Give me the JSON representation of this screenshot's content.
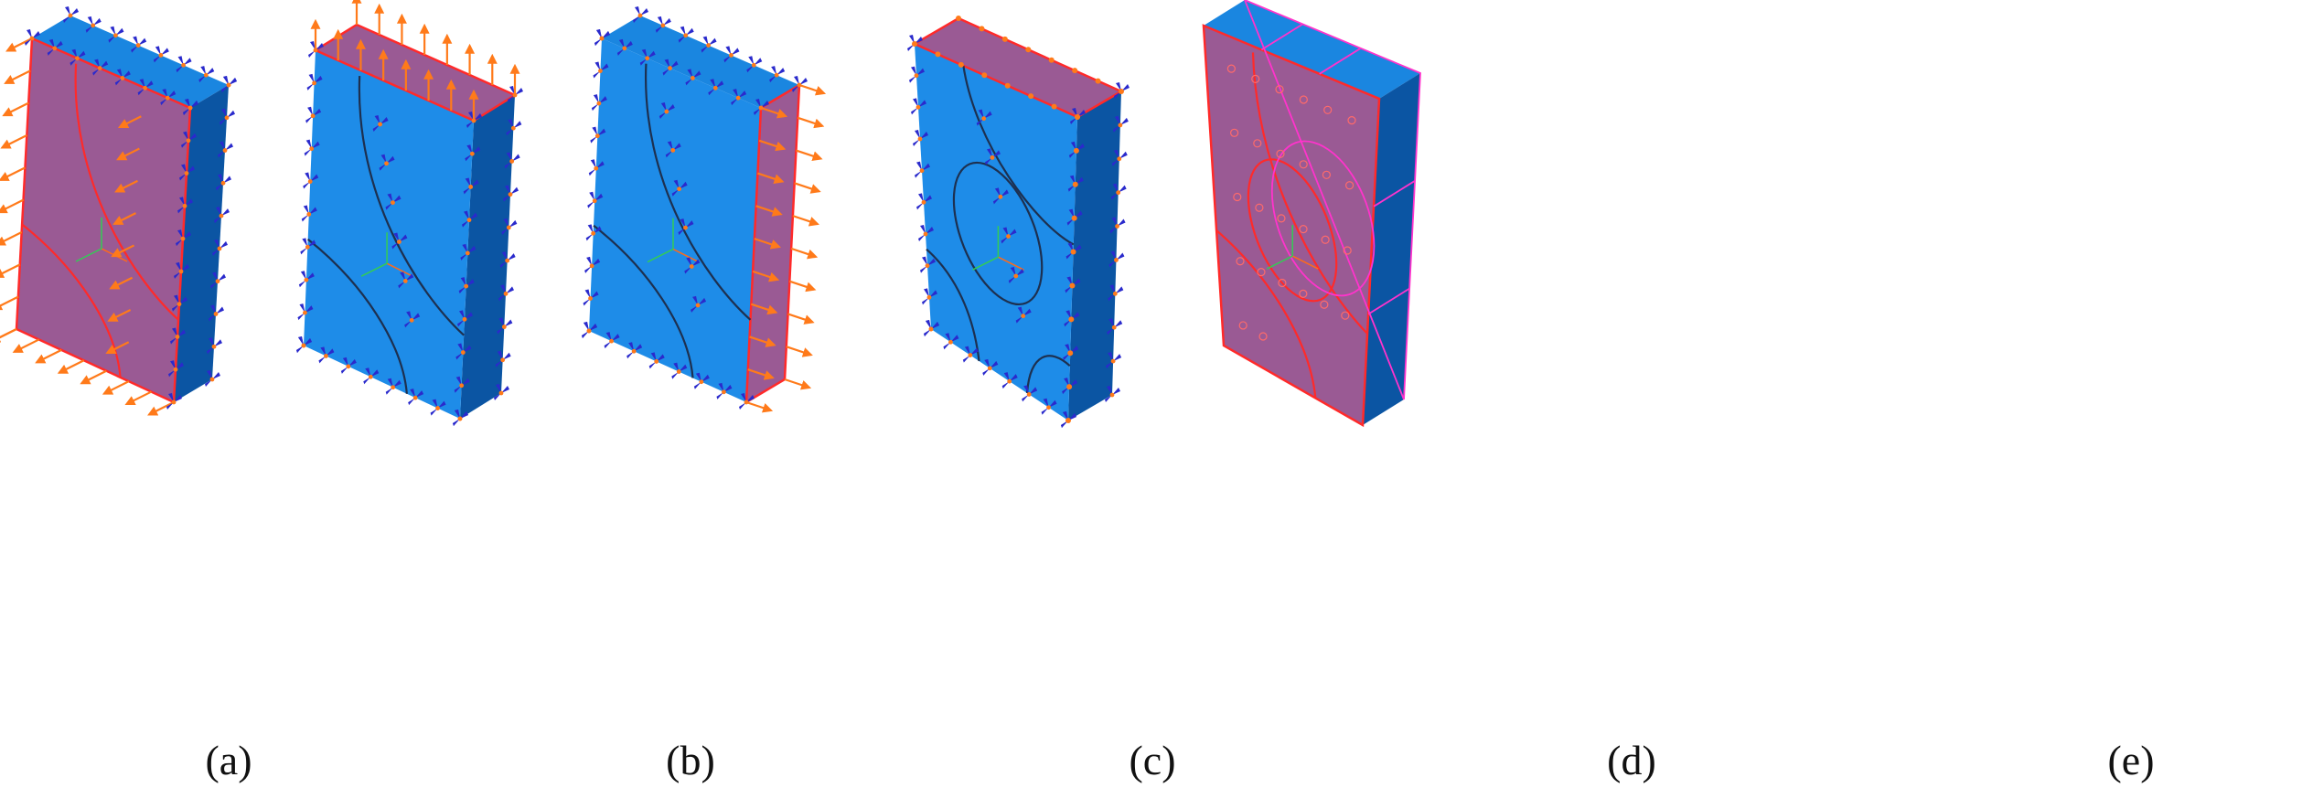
{
  "figure": {
    "panels": [
      {
        "id": "a",
        "label": "(a)",
        "highlight": "front",
        "hole_style": "quarter-corners",
        "front_load": "arrows-out",
        "side_load": "bc",
        "top_load": "bc"
      },
      {
        "id": "b",
        "label": "(b)",
        "highlight": "top",
        "hole_style": "quarter-corners",
        "front_load": "bc",
        "side_load": "bc",
        "top_load": "arrows-up"
      },
      {
        "id": "c",
        "label": "(c)",
        "highlight": "side",
        "hole_style": "quarter-corners",
        "front_load": "bc",
        "side_load": "arrows-out",
        "top_load": "bc"
      },
      {
        "id": "d",
        "label": "(d)",
        "highlight": "top",
        "hole_style": "center-ellipse",
        "front_load": "bc",
        "side_load": "bc",
        "top_load": "points"
      },
      {
        "id": "e",
        "label": "(e)",
        "highlight": "front",
        "hole_style": "partitioned",
        "front_load": "none",
        "side_load": "none",
        "top_load": "none"
      }
    ],
    "colors": {
      "face_front": "#1e8ce8",
      "face_top": "#1a86e0",
      "face_side": "#0b55a3",
      "highlight": "#9a5a94",
      "highlight_edge": "#ff2a2a",
      "partition_edge": "#ff33cc",
      "load_arrow": "#ff7a1a",
      "bc_symbol": "#2a2acc",
      "hole_line": "#1d3050",
      "axis_x": "#ff6a1a",
      "axis_y": "#33cc55",
      "axis_z": "#33cc55"
    }
  }
}
